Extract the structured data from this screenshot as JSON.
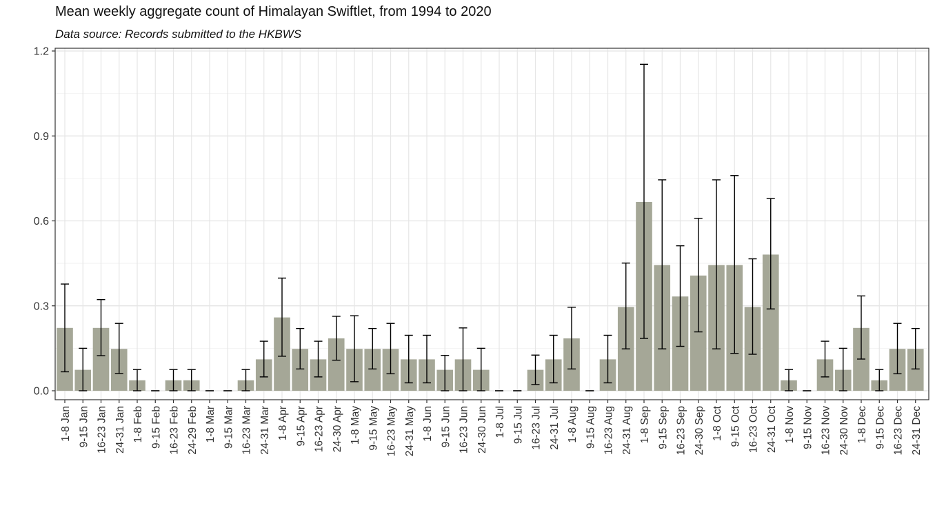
{
  "chart_data": {
    "type": "bar",
    "title": "Mean weekly aggregate count of Himalayan Swiftlet, from 1994 to 2020",
    "subtitle": "Data source: Records submitted to the HKBWS",
    "xlabel": "",
    "ylabel": "",
    "ylim": [
      0,
      1.2
    ],
    "yticks": [
      0.0,
      0.3,
      0.6,
      0.9,
      1.2
    ],
    "ytick_labels": [
      "0.0",
      "0.3",
      "0.6",
      "0.9",
      "1.2"
    ],
    "grid": true,
    "bar_color": "#a5a797",
    "categories": [
      "1-8 Jan",
      "9-15 Jan",
      "16-23 Jan",
      "24-31 Jan",
      "1-8 Feb",
      "9-15 Feb",
      "16-23 Feb",
      "24-29 Feb",
      "1-8 Mar",
      "9-15 Mar",
      "16-23 Mar",
      "24-31 Mar",
      "1-8 Apr",
      "9-15 Apr",
      "16-23 Apr",
      "24-30 Apr",
      "1-8 May",
      "9-15 May",
      "16-23 May",
      "24-31 May",
      "1-8 Jun",
      "9-15 Jun",
      "16-23 Jun",
      "24-30 Jun",
      "1-8 Jul",
      "9-15 Jul",
      "16-23 Jul",
      "24-31 Jul",
      "1-8 Aug",
      "9-15 Aug",
      "16-23 Aug",
      "24-31 Aug",
      "1-8 Sep",
      "9-15 Sep",
      "16-23 Sep",
      "24-30 Sep",
      "1-8 Oct",
      "9-15 Oct",
      "16-23 Oct",
      "24-31 Oct",
      "1-8 Nov",
      "9-15 Nov",
      "16-23 Nov",
      "24-30 Nov",
      "1-8 Dec",
      "9-15 Dec",
      "16-23 Dec",
      "24-31 Dec"
    ],
    "values": [
      0.222,
      0.074,
      0.222,
      0.148,
      0.037,
      0,
      0.037,
      0.037,
      0,
      0,
      0.037,
      0.111,
      0.259,
      0.148,
      0.111,
      0.185,
      0.148,
      0.148,
      0.148,
      0.111,
      0.111,
      0.074,
      0.111,
      0.074,
      0,
      0,
      0.074,
      0.111,
      0.185,
      0,
      0.111,
      0.296,
      0.667,
      0.444,
      0.333,
      0.407,
      0.444,
      0.444,
      0.296,
      0.481,
      0.037,
      0,
      0.111,
      0.074,
      0.222,
      0.037,
      0.148,
      0.148
    ],
    "error_low": [
      0.067,
      0,
      0.124,
      0.061,
      0,
      0,
      0,
      0,
      0,
      0,
      0,
      0.049,
      0.122,
      0.077,
      0.049,
      0.108,
      0.032,
      0.077,
      0.06,
      0.028,
      0.028,
      0,
      0,
      0,
      0,
      0,
      0.022,
      0.028,
      0.077,
      0,
      0.028,
      0.148,
      0.185,
      0.148,
      0.157,
      0.208,
      0.148,
      0.132,
      0.129,
      0.289,
      0,
      0,
      0.049,
      0,
      0.112,
      0,
      0.06,
      0.077
    ],
    "error_high": [
      0.377,
      0.15,
      0.322,
      0.238,
      0.075,
      0,
      0.075,
      0.075,
      0,
      0,
      0.075,
      0.175,
      0.398,
      0.22,
      0.175,
      0.263,
      0.265,
      0.22,
      0.238,
      0.196,
      0.196,
      0.125,
      0.222,
      0.15,
      0,
      0,
      0.126,
      0.196,
      0.295,
      0,
      0.196,
      0.451,
      1.153,
      0.745,
      0.512,
      0.609,
      0.745,
      0.76,
      0.466,
      0.679,
      0.075,
      0,
      0.175,
      0.15,
      0.335,
      0.075,
      0.238,
      0.22
    ]
  }
}
